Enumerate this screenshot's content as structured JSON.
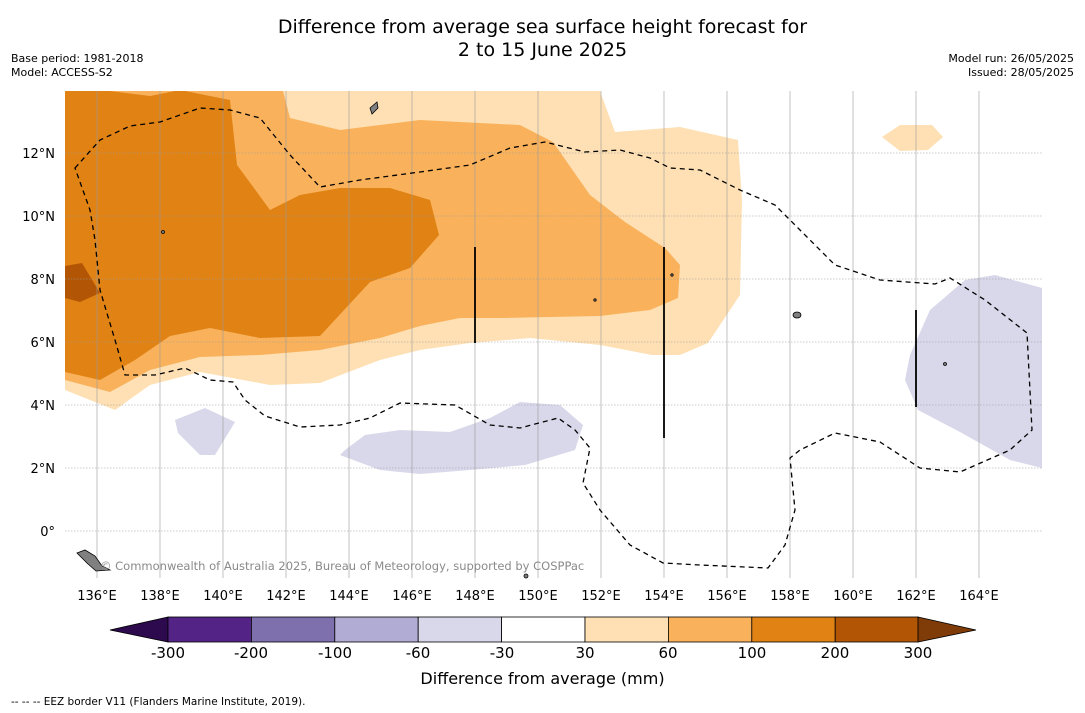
{
  "header": {
    "title_line1": "Difference from average sea surface height forecast for",
    "title_line2": "2 to 15 June 2025",
    "base_period": "Base period: 1981-2018",
    "model": "Model: ACCESS-S2",
    "model_run": "Model run: 26/05/2025",
    "issued": "Issued: 28/05/2025"
  },
  "map": {
    "lon_ticks": [
      "136°E",
      "138°E",
      "140°E",
      "142°E",
      "144°E",
      "146°E",
      "148°E",
      "150°E",
      "152°E",
      "154°E",
      "156°E",
      "158°E",
      "160°E",
      "162°E",
      "164°E"
    ],
    "lat_ticks": [
      "12°N",
      "10°N",
      "8°N",
      "6°N",
      "4°N",
      "2°N",
      "0°"
    ],
    "lon_range": [
      135,
      166
    ],
    "lat_range": [
      -1.5,
      14
    ],
    "copyright": "© Commonwealth of Australia 2025, Bureau of Meteorology, supported by COSPPac",
    "grid": true,
    "eez_border": "dashed"
  },
  "colorbar": {
    "label": "Difference from average (mm)",
    "ticks": [
      "-300",
      "-200",
      "-100",
      "-60",
      "-30",
      "30",
      "60",
      "100",
      "200",
      "300"
    ],
    "colors": [
      "#2d0a4e",
      "#532486",
      "#7e70ad",
      "#b1acd3",
      "#d8d8ea",
      "#ffffff",
      "#fee0b4",
      "#f9b25b",
      "#e08214",
      "#b25606",
      "#7f3b08"
    ],
    "extend": "both"
  },
  "footnote": "--  --  -- EEZ border V11 (Flanders Marine Institute, 2019)."
}
